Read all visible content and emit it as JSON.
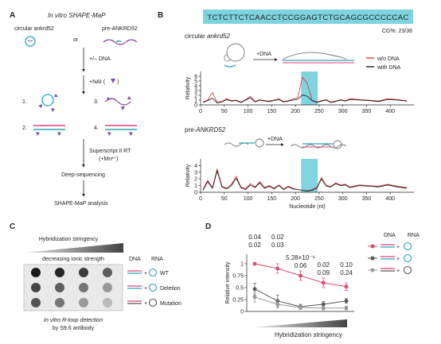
{
  "panels": {
    "a": {
      "letter": "A",
      "title": "In vitro SHAPE-MaP",
      "construct_circular": "circular ankrd52",
      "or_text": "or",
      "construct_pre": "pre-ANKRD52",
      "step_dna": "+/– DNA",
      "step_nai": "+NAI (",
      "step_nai_close": ")",
      "conditions": [
        "1.",
        "3.",
        "2.",
        "4."
      ],
      "step_rt": "Superscript II RT",
      "step_mn": "(+Mn²⁺)",
      "step_seq": "Deep-sequencing",
      "step_analysis": "SHAPE-MaP analysis",
      "colors": {
        "nai_marker": "#7b4fa0",
        "rna_circle": "#2aa7b8",
        "dna_bar": "#e0407a"
      }
    },
    "b": {
      "letter": "B",
      "sequence": "TCTCTTCTCAACCTCCGGAGTCTGCAGCGCCCCCAC",
      "gc_content": "CG%: 23/36",
      "top_title": "circular ankrd52",
      "bottom_title": "pre-ANKRD52",
      "plus_dna": "+DNA",
      "legend_without": "w/o DNA",
      "legend_with": "with DNA",
      "colors": {
        "without": "#d9303a",
        "with": "#111111",
        "highlight": "#80d4e0"
      }
    },
    "c": {
      "letter": "C",
      "gradient_label": "Hybridization stringency",
      "ionic_label": "decreasing ionic strength",
      "col_dna": "DNA",
      "col_rna": "RNA",
      "rows": [
        "WT",
        "Deletion",
        "Mutation"
      ],
      "caption_line1": "In vitro R-loop detection",
      "caption_line2": "by S9.6 antibody",
      "dot_intensity": [
        [
          1.0,
          0.95,
          0.85,
          0.7
        ],
        [
          0.8,
          0.7,
          0.6,
          0.45
        ],
        [
          0.75,
          0.6,
          0.45,
          0.3
        ]
      ]
    },
    "d": {
      "letter": "D",
      "legend_dna": "DNA",
      "legend_rna": "RNA",
      "pvalues_series1": [
        "0.04",
        "0.02",
        "5.28×10⁻⁶",
        "0.02",
        "0.10"
      ],
      "pvalues_series2": [
        "0.02",
        "0.03",
        "0.06",
        "0.09",
        "0.24"
      ],
      "colors": {
        "wt": "#d9486a",
        "deletion": "#555555",
        "mutation": "#999999",
        "pv1": "#555555",
        "pv2": "#888888"
      }
    }
  },
  "chart_data": [
    {
      "type": "line",
      "title": "circular ankrd52",
      "xlabel": "",
      "ylabel": "Relativity",
      "xlim": [
        0,
        450
      ],
      "ylim": [
        0,
        7
      ],
      "xticks": [
        0,
        50,
        100,
        150,
        200,
        250,
        300,
        350,
        400
      ],
      "yticks": [
        0,
        1,
        2,
        3,
        4,
        5,
        6
      ],
      "highlight_region": [
        212,
        247
      ],
      "series": [
        {
          "name": "w/o DNA",
          "x": [
            5,
            15,
            25,
            35,
            45,
            55,
            65,
            75,
            85,
            95,
            105,
            115,
            125,
            135,
            145,
            155,
            165,
            175,
            185,
            195,
            205,
            215,
            225,
            235,
            245,
            255,
            265,
            275,
            285,
            295,
            305,
            315,
            335,
            355,
            375,
            395,
            415,
            435
          ],
          "y": [
            0.6,
            1.0,
            2.6,
            0.5,
            0.7,
            1.3,
            0.9,
            1.0,
            0.6,
            1.1,
            1.8,
            0.7,
            1.1,
            0.9,
            0.8,
            1.0,
            1.3,
            0.7,
            0.9,
            1.2,
            1.6,
            5.8,
            4.5,
            1.0,
            0.6,
            0.9,
            1.1,
            0.6,
            0.8,
            1.1,
            0.9,
            1.3,
            1.1,
            1.0,
            0.8,
            1.3,
            1.1,
            0.9
          ]
        },
        {
          "name": "with DNA",
          "x": [
            5,
            15,
            25,
            35,
            45,
            55,
            65,
            75,
            85,
            95,
            105,
            115,
            125,
            135,
            145,
            155,
            165,
            175,
            185,
            195,
            205,
            215,
            225,
            235,
            245,
            255,
            265,
            275,
            285,
            295,
            305,
            315,
            335,
            355,
            375,
            395,
            415,
            435
          ],
          "y": [
            0.5,
            0.9,
            1.4,
            0.4,
            0.6,
            1.1,
            0.8,
            0.9,
            0.5,
            1.0,
            1.5,
            0.6,
            1.0,
            0.8,
            0.7,
            0.9,
            1.1,
            0.6,
            0.8,
            1.0,
            1.2,
            2.1,
            1.8,
            0.9,
            0.5,
            0.8,
            1.0,
            0.5,
            0.7,
            1.0,
            0.8,
            1.1,
            1.0,
            0.9,
            0.7,
            1.1,
            1.0,
            0.8
          ]
        }
      ]
    },
    {
      "type": "line",
      "title": "pre-ANKRD52",
      "xlabel": "Nucleotide (nt)",
      "ylabel": "Relativity",
      "xlim": [
        0,
        450
      ],
      "ylim": [
        0,
        5
      ],
      "xticks": [
        0,
        50,
        100,
        150,
        200,
        250,
        300,
        350,
        400
      ],
      "yticks": [
        0,
        1,
        2,
        3,
        4
      ],
      "highlight_region": [
        212,
        247
      ],
      "series": [
        {
          "name": "w/o DNA",
          "x": [
            5,
            15,
            25,
            35,
            45,
            55,
            65,
            75,
            85,
            95,
            105,
            115,
            125,
            135,
            145,
            155,
            165,
            175,
            185,
            195,
            205,
            215,
            225,
            235,
            245,
            255,
            265,
            275,
            285,
            295,
            305,
            315,
            335,
            355,
            375,
            395,
            415,
            435
          ],
          "y": [
            0.4,
            1.8,
            0.7,
            3.5,
            0.9,
            0.6,
            1.2,
            2.4,
            0.8,
            0.5,
            1.3,
            0.8,
            1.6,
            0.7,
            1.0,
            0.6,
            1.1,
            0.5,
            0.9,
            0.6,
            0.4,
            0.3,
            0.2,
            0.4,
            0.7,
            2.2,
            1.0,
            0.9,
            1.4,
            1.1,
            1.2,
            0.8,
            1.1,
            1.0,
            0.9,
            1.2,
            0.9,
            0.7
          ]
        },
        {
          "name": "with DNA",
          "x": [
            5,
            15,
            25,
            35,
            45,
            55,
            65,
            75,
            85,
            95,
            105,
            115,
            125,
            135,
            145,
            155,
            165,
            175,
            185,
            195,
            205,
            215,
            225,
            235,
            245,
            255,
            265,
            275,
            285,
            295,
            305,
            315,
            335,
            355,
            375,
            395,
            415,
            435
          ],
          "y": [
            0.3,
            1.6,
            0.6,
            3.2,
            0.8,
            0.5,
            1.0,
            2.1,
            0.7,
            0.4,
            1.1,
            0.7,
            1.4,
            0.6,
            0.9,
            0.5,
            1.0,
            0.4,
            0.8,
            0.5,
            0.4,
            0.3,
            0.2,
            0.3,
            0.6,
            2.0,
            0.9,
            0.8,
            1.3,
            1.0,
            1.1,
            0.7,
            1.0,
            0.9,
            0.8,
            1.1,
            0.8,
            0.6
          ]
        }
      ]
    },
    {
      "type": "line",
      "title": "",
      "xlabel": "Hybridization stringency",
      "ylabel": "Relative intensity",
      "ylim": [
        0,
        1.2
      ],
      "yticks": [
        0,
        0.25,
        0.5,
        0.75,
        1
      ],
      "x": [
        1,
        2,
        3,
        4,
        5
      ],
      "series": [
        {
          "name": "WT",
          "values": [
            1.0,
            0.9,
            0.75,
            0.6,
            0.52
          ],
          "errors": [
            0.0,
            0.1,
            0.1,
            0.1,
            0.08
          ]
        },
        {
          "name": "Deletion",
          "values": [
            0.47,
            0.22,
            0.1,
            0.15,
            0.22
          ],
          "errors": [
            0.12,
            0.12,
            0.05,
            0.06,
            0.05
          ]
        },
        {
          "name": "Mutation",
          "values": [
            0.3,
            0.15,
            0.08,
            0.07,
            0.07
          ],
          "errors": [
            0.1,
            0.08,
            0.04,
            0.04,
            0.04
          ]
        }
      ]
    }
  ]
}
